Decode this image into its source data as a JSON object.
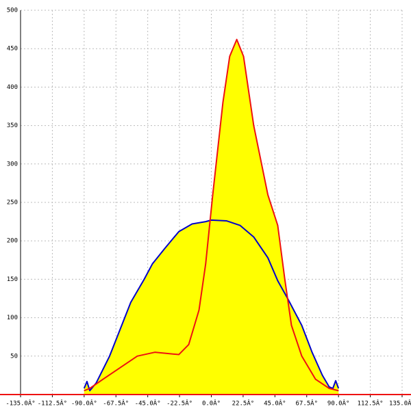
{
  "chart_data": {
    "type": "area",
    "xlim": [
      -135,
      135
    ],
    "ylim": [
      0,
      500
    ],
    "xticks": [
      {
        "value": -135,
        "label": "-135.0Â°"
      },
      {
        "value": -112.5,
        "label": "-112.5Â°"
      },
      {
        "value": -90,
        "label": "-90.0Â°"
      },
      {
        "value": -67.5,
        "label": "-67.5Â°"
      },
      {
        "value": -45,
        "label": "-45.0Â°"
      },
      {
        "value": -22.5,
        "label": "-22.5Â°"
      },
      {
        "value": 0,
        "label": "0.0Â°"
      },
      {
        "value": 22.5,
        "label": "22.5Â°"
      },
      {
        "value": 45,
        "label": "45.0Â°"
      },
      {
        "value": 67.5,
        "label": "67.5Â°"
      },
      {
        "value": 90,
        "label": "90.0Â°"
      },
      {
        "value": 112.5,
        "label": "112.5Â°"
      },
      {
        "value": 135,
        "label": "135.0Â°"
      }
    ],
    "yticks": [
      50,
      100,
      150,
      200,
      250,
      300,
      350,
      400,
      450,
      500
    ],
    "grid": true,
    "fill_color": "#ffff00",
    "series": [
      {
        "color": "#0000cc",
        "x": [
          -90,
          -88,
          -86,
          -81.5,
          -72,
          -64.5,
          -57,
          -47.5,
          -41.7,
          -33,
          -23,
          -13.6,
          -4,
          0,
          10.7,
          20.4,
          30,
          40,
          47,
          54,
          64,
          71.3,
          78.6,
          83.4,
          86,
          88,
          90
        ],
        "values": [
          8,
          17,
          5,
          15,
          50,
          85,
          120,
          150,
          170,
          190,
          212,
          222,
          225,
          227,
          226,
          220,
          205,
          178,
          148,
          125,
          90,
          55,
          25,
          10,
          8,
          18,
          8
        ]
      },
      {
        "color": "#ee1111",
        "x": [
          -90,
          -86,
          -76.6,
          -64.5,
          -52.4,
          -40,
          -23,
          -16,
          -8.7,
          -4,
          1,
          8.2,
          13,
          18,
          22.8,
          30,
          40,
          47,
          52,
          56.7,
          64,
          73.7,
          83.4,
          90
        ],
        "values": [
          5,
          8,
          20,
          35,
          50,
          55,
          52,
          65,
          110,
          170,
          260,
          380,
          440,
          462,
          440,
          350,
          260,
          220,
          150,
          90,
          50,
          20,
          8,
          5
        ]
      }
    ]
  }
}
